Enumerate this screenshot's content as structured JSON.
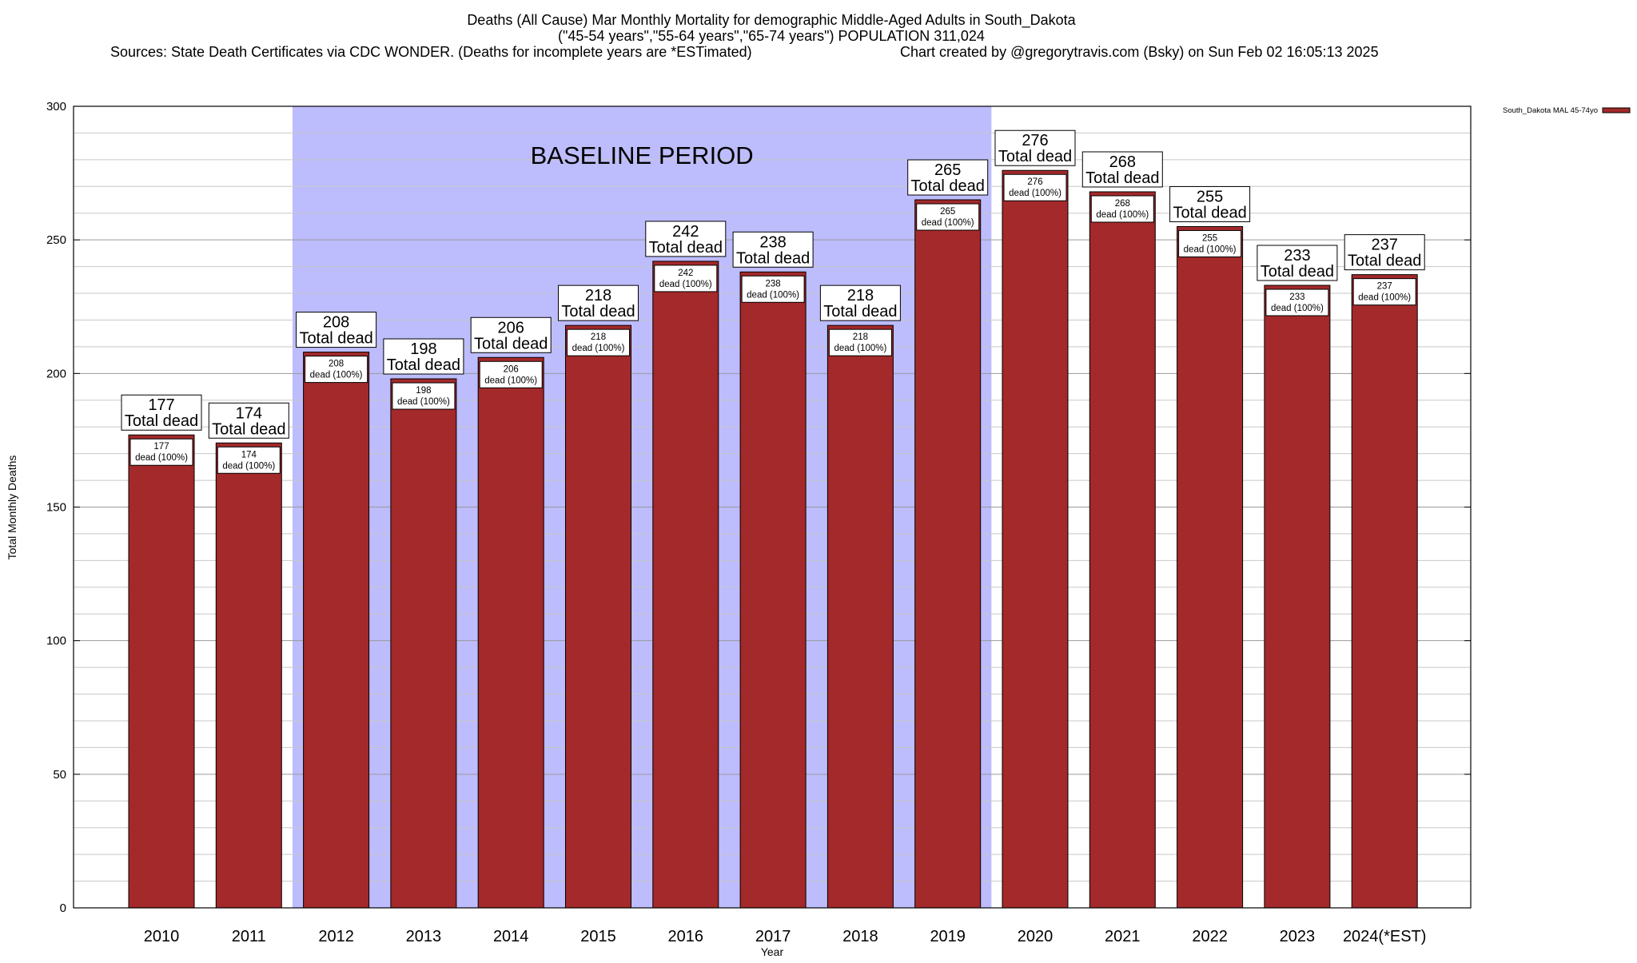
{
  "chart_data": {
    "type": "bar",
    "title_lines": [
      "Deaths (All Cause) Mar Monthly Mortality for demographic Middle-Aged Adults in South_Dakota",
      "(\"45-54 years\",\"55-64 years\",\"65-74 years\") POPULATION 311,024"
    ],
    "sources_text": "Sources: State Death Certificates via CDC WONDER. (Deaths for incomplete years are *ESTimated)",
    "credit_text": "Chart created by @gregorytravis.com (Bsky) on Sun Feb 02 16:05:13 2025",
    "xlabel": "Year",
    "ylabel": "Total Monthly Deaths",
    "ylim": [
      0,
      300
    ],
    "yticks": [
      0,
      50,
      100,
      150,
      200,
      250,
      300
    ],
    "minor_grid_step": 10,
    "grid": true,
    "legend": {
      "placement": "top-right",
      "label": "South_Dakota MAL 45-74yo",
      "color": "#a3292a"
    },
    "baseline_region": {
      "label": "BASELINE PERIOD",
      "from": "2012",
      "to": "2019",
      "color": "#bdbcfc"
    },
    "categories": [
      "2010",
      "2011",
      "2012",
      "2013",
      "2014",
      "2015",
      "2016",
      "2017",
      "2018",
      "2019",
      "2020",
      "2021",
      "2022",
      "2023",
      "2024(*EST)"
    ],
    "series": [
      {
        "name": "South_Dakota MAL 45-74yo",
        "color": "#a3292a",
        "values": [
          177,
          174,
          208,
          198,
          206,
          218,
          242,
          238,
          218,
          265,
          276,
          268,
          255,
          233,
          237
        ]
      }
    ],
    "label_total_text": "Total dead",
    "label_inner_text": "dead (100%)"
  }
}
